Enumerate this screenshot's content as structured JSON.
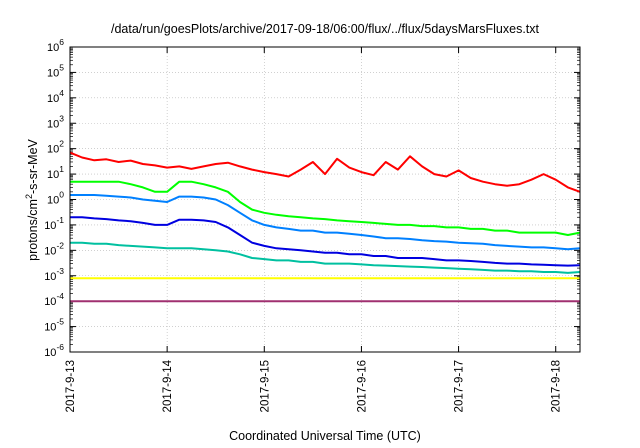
{
  "chart_data": {
    "type": "line",
    "title": "/data/run/goesPlots/archive/2017-09-18/06:00/flux/../flux/5daysMarsFluxes.txt",
    "xlabel": "Coordinated Universal Time (UTC)",
    "ylabel": {
      "before": "protons/cm",
      "sup": "2",
      "after": "-s-sr-MeV"
    },
    "y_scale": "log",
    "ylim": [
      1e-06,
      1000000
    ],
    "y_ticks": [
      {
        "base": "10",
        "exp": "6"
      },
      {
        "base": "10",
        "exp": "5"
      },
      {
        "base": "10",
        "exp": "4"
      },
      {
        "base": "10",
        "exp": "3"
      },
      {
        "base": "10",
        "exp": "2"
      },
      {
        "base": "10",
        "exp": "1"
      },
      {
        "base": "10",
        "exp": "0"
      },
      {
        "base": "10",
        "exp": "-1"
      },
      {
        "base": "10",
        "exp": "-2"
      },
      {
        "base": "10",
        "exp": "-3"
      },
      {
        "base": "10",
        "exp": "-4"
      },
      {
        "base": "10",
        "exp": "-5"
      },
      {
        "base": "10",
        "exp": "-6"
      }
    ],
    "x_ticks": [
      "2017-9-13",
      "2017-9-14",
      "2017-9-15",
      "2017-9-16",
      "2017-9-17",
      "2017-9-18"
    ],
    "xlim": [
      "2017-09-13 00:00",
      "2017-09-18 06:00"
    ],
    "grid": true,
    "legend": "none",
    "series": [
      {
        "color": "#ff0000",
        "x": [
          "2017-09-13 00:00",
          "2017-09-13 03:00",
          "2017-09-13 06:00",
          "2017-09-13 09:00",
          "2017-09-13 12:00",
          "2017-09-13 15:00",
          "2017-09-13 18:00",
          "2017-09-13 21:00",
          "2017-09-14 00:00",
          "2017-09-14 03:00",
          "2017-09-14 06:00",
          "2017-09-14 09:00",
          "2017-09-14 12:00",
          "2017-09-14 15:00",
          "2017-09-14 18:00",
          "2017-09-14 21:00",
          "2017-09-15 00:00",
          "2017-09-15 03:00",
          "2017-09-15 06:00",
          "2017-09-15 09:00",
          "2017-09-15 12:00",
          "2017-09-15 15:00",
          "2017-09-15 18:00",
          "2017-09-15 21:00",
          "2017-09-16 00:00",
          "2017-09-16 03:00",
          "2017-09-16 06:00",
          "2017-09-16 09:00",
          "2017-09-16 12:00",
          "2017-09-16 15:00",
          "2017-09-16 18:00",
          "2017-09-16 21:00",
          "2017-09-17 00:00",
          "2017-09-17 03:00",
          "2017-09-17 06:00",
          "2017-09-17 09:00",
          "2017-09-17 12:00",
          "2017-09-17 15:00",
          "2017-09-17 18:00",
          "2017-09-17 21:00",
          "2017-09-18 00:00",
          "2017-09-18 03:00",
          "2017-09-18 06:00"
        ],
        "values": [
          70,
          45,
          35,
          38,
          30,
          34,
          25,
          22,
          18,
          20,
          16,
          20,
          25,
          28,
          20,
          15,
          12,
          10,
          8,
          15,
          30,
          10,
          40,
          18,
          12,
          9,
          30,
          15,
          50,
          20,
          10,
          8,
          14,
          7,
          5,
          4,
          3.5,
          4,
          6,
          10,
          6,
          3,
          2
        ]
      },
      {
        "color": "#00ff00",
        "x": [
          "2017-09-13 00:00",
          "2017-09-13 03:00",
          "2017-09-13 06:00",
          "2017-09-13 09:00",
          "2017-09-13 12:00",
          "2017-09-13 15:00",
          "2017-09-13 18:00",
          "2017-09-13 21:00",
          "2017-09-14 00:00",
          "2017-09-14 03:00",
          "2017-09-14 06:00",
          "2017-09-14 09:00",
          "2017-09-14 12:00",
          "2017-09-14 15:00",
          "2017-09-14 18:00",
          "2017-09-14 21:00",
          "2017-09-15 00:00",
          "2017-09-15 03:00",
          "2017-09-15 06:00",
          "2017-09-15 09:00",
          "2017-09-15 12:00",
          "2017-09-15 15:00",
          "2017-09-15 18:00",
          "2017-09-15 21:00",
          "2017-09-16 00:00",
          "2017-09-16 03:00",
          "2017-09-16 06:00",
          "2017-09-16 09:00",
          "2017-09-16 12:00",
          "2017-09-16 15:00",
          "2017-09-16 18:00",
          "2017-09-16 21:00",
          "2017-09-17 00:00",
          "2017-09-17 03:00",
          "2017-09-17 06:00",
          "2017-09-17 09:00",
          "2017-09-17 12:00",
          "2017-09-17 15:00",
          "2017-09-17 18:00",
          "2017-09-17 21:00",
          "2017-09-18 00:00",
          "2017-09-18 03:00",
          "2017-09-18 06:00"
        ],
        "values": [
          5,
          5,
          5,
          5,
          5,
          4,
          3,
          2,
          2,
          5,
          5,
          4,
          3,
          2,
          0.8,
          0.4,
          0.3,
          0.25,
          0.22,
          0.2,
          0.18,
          0.17,
          0.15,
          0.14,
          0.13,
          0.12,
          0.11,
          0.1,
          0.1,
          0.09,
          0.09,
          0.08,
          0.08,
          0.07,
          0.07,
          0.06,
          0.06,
          0.05,
          0.05,
          0.05,
          0.05,
          0.04,
          0.05
        ]
      },
      {
        "color": "#0080ff",
        "x": [
          "2017-09-13 00:00",
          "2017-09-13 03:00",
          "2017-09-13 06:00",
          "2017-09-13 09:00",
          "2017-09-13 12:00",
          "2017-09-13 15:00",
          "2017-09-13 18:00",
          "2017-09-13 21:00",
          "2017-09-14 00:00",
          "2017-09-14 03:00",
          "2017-09-14 06:00",
          "2017-09-14 09:00",
          "2017-09-14 12:00",
          "2017-09-14 15:00",
          "2017-09-14 18:00",
          "2017-09-14 21:00",
          "2017-09-15 00:00",
          "2017-09-15 03:00",
          "2017-09-15 06:00",
          "2017-09-15 09:00",
          "2017-09-15 12:00",
          "2017-09-15 15:00",
          "2017-09-15 18:00",
          "2017-09-15 21:00",
          "2017-09-16 00:00",
          "2017-09-16 03:00",
          "2017-09-16 06:00",
          "2017-09-16 09:00",
          "2017-09-16 12:00",
          "2017-09-16 15:00",
          "2017-09-16 18:00",
          "2017-09-16 21:00",
          "2017-09-17 00:00",
          "2017-09-17 03:00",
          "2017-09-17 06:00",
          "2017-09-17 09:00",
          "2017-09-17 12:00",
          "2017-09-17 15:00",
          "2017-09-17 18:00",
          "2017-09-17 21:00",
          "2017-09-18 00:00",
          "2017-09-18 03:00",
          "2017-09-18 06:00"
        ],
        "values": [
          1.5,
          1.5,
          1.5,
          1.4,
          1.3,
          1.2,
          1.0,
          0.9,
          0.8,
          1.3,
          1.3,
          1.2,
          1.0,
          0.6,
          0.3,
          0.15,
          0.1,
          0.08,
          0.07,
          0.06,
          0.06,
          0.05,
          0.05,
          0.045,
          0.04,
          0.035,
          0.03,
          0.03,
          0.028,
          0.025,
          0.023,
          0.022,
          0.02,
          0.019,
          0.018,
          0.016,
          0.015,
          0.014,
          0.013,
          0.013,
          0.012,
          0.011,
          0.012
        ]
      },
      {
        "color": "#0000e0",
        "x": [
          "2017-09-13 00:00",
          "2017-09-13 03:00",
          "2017-09-13 06:00",
          "2017-09-13 09:00",
          "2017-09-13 12:00",
          "2017-09-13 15:00",
          "2017-09-13 18:00",
          "2017-09-13 21:00",
          "2017-09-14 00:00",
          "2017-09-14 03:00",
          "2017-09-14 06:00",
          "2017-09-14 09:00",
          "2017-09-14 12:00",
          "2017-09-14 15:00",
          "2017-09-14 18:00",
          "2017-09-14 21:00",
          "2017-09-15 00:00",
          "2017-09-15 03:00",
          "2017-09-15 06:00",
          "2017-09-15 09:00",
          "2017-09-15 12:00",
          "2017-09-15 15:00",
          "2017-09-15 18:00",
          "2017-09-15 21:00",
          "2017-09-16 00:00",
          "2017-09-16 03:00",
          "2017-09-16 06:00",
          "2017-09-16 09:00",
          "2017-09-16 12:00",
          "2017-09-16 15:00",
          "2017-09-16 18:00",
          "2017-09-16 21:00",
          "2017-09-17 00:00",
          "2017-09-17 03:00",
          "2017-09-17 06:00",
          "2017-09-17 09:00",
          "2017-09-17 12:00",
          "2017-09-17 15:00",
          "2017-09-17 18:00",
          "2017-09-17 21:00",
          "2017-09-18 00:00",
          "2017-09-18 03:00",
          "2017-09-18 06:00"
        ],
        "values": [
          0.2,
          0.2,
          0.18,
          0.17,
          0.15,
          0.14,
          0.12,
          0.1,
          0.1,
          0.16,
          0.16,
          0.15,
          0.13,
          0.08,
          0.04,
          0.02,
          0.015,
          0.012,
          0.011,
          0.01,
          0.009,
          0.008,
          0.008,
          0.007,
          0.007,
          0.006,
          0.006,
          0.005,
          0.005,
          0.005,
          0.0045,
          0.004,
          0.004,
          0.0038,
          0.0035,
          0.0032,
          0.003,
          0.003,
          0.0028,
          0.0027,
          0.0026,
          0.0025,
          0.0026
        ]
      },
      {
        "color": "#00c0a0",
        "x": [
          "2017-09-13 00:00",
          "2017-09-13 03:00",
          "2017-09-13 06:00",
          "2017-09-13 09:00",
          "2017-09-13 12:00",
          "2017-09-13 15:00",
          "2017-09-13 18:00",
          "2017-09-13 21:00",
          "2017-09-14 00:00",
          "2017-09-14 03:00",
          "2017-09-14 06:00",
          "2017-09-14 09:00",
          "2017-09-14 12:00",
          "2017-09-14 15:00",
          "2017-09-14 18:00",
          "2017-09-14 21:00",
          "2017-09-15 00:00",
          "2017-09-15 03:00",
          "2017-09-15 06:00",
          "2017-09-15 09:00",
          "2017-09-15 12:00",
          "2017-09-15 15:00",
          "2017-09-15 18:00",
          "2017-09-15 21:00",
          "2017-09-16 00:00",
          "2017-09-16 03:00",
          "2017-09-16 06:00",
          "2017-09-16 09:00",
          "2017-09-16 12:00",
          "2017-09-16 15:00",
          "2017-09-16 18:00",
          "2017-09-16 21:00",
          "2017-09-17 00:00",
          "2017-09-17 03:00",
          "2017-09-17 06:00",
          "2017-09-17 09:00",
          "2017-09-17 12:00",
          "2017-09-17 15:00",
          "2017-09-17 18:00",
          "2017-09-17 21:00",
          "2017-09-18 00:00",
          "2017-09-18 03:00",
          "2017-09-18 06:00"
        ],
        "values": [
          0.02,
          0.02,
          0.018,
          0.018,
          0.016,
          0.015,
          0.014,
          0.013,
          0.012,
          0.012,
          0.012,
          0.011,
          0.01,
          0.009,
          0.007,
          0.005,
          0.0045,
          0.004,
          0.004,
          0.0035,
          0.0035,
          0.003,
          0.003,
          0.003,
          0.0028,
          0.0026,
          0.0025,
          0.0024,
          0.0023,
          0.0022,
          0.0021,
          0.002,
          0.0019,
          0.0018,
          0.0017,
          0.0016,
          0.0016,
          0.0015,
          0.0015,
          0.0014,
          0.0014,
          0.0013,
          0.0014
        ]
      },
      {
        "color": "#ffff00",
        "x": [
          "2017-09-13 00:00",
          "2017-09-13 03:00",
          "2017-09-13 06:00",
          "2017-09-13 09:00",
          "2017-09-13 12:00",
          "2017-09-13 15:00",
          "2017-09-13 18:00",
          "2017-09-13 21:00",
          "2017-09-14 00:00",
          "2017-09-14 03:00",
          "2017-09-14 06:00",
          "2017-09-14 09:00",
          "2017-09-14 12:00",
          "2017-09-14 15:00",
          "2017-09-14 18:00",
          "2017-09-14 21:00",
          "2017-09-15 00:00",
          "2017-09-15 03:00",
          "2017-09-15 06:00",
          "2017-09-15 09:00",
          "2017-09-15 12:00",
          "2017-09-15 15:00",
          "2017-09-15 18:00",
          "2017-09-15 21:00",
          "2017-09-16 00:00",
          "2017-09-16 03:00",
          "2017-09-16 06:00",
          "2017-09-16 09:00",
          "2017-09-16 12:00",
          "2017-09-16 15:00",
          "2017-09-16 18:00",
          "2017-09-16 21:00",
          "2017-09-17 00:00",
          "2017-09-17 03:00",
          "2017-09-17 06:00",
          "2017-09-17 09:00",
          "2017-09-17 12:00",
          "2017-09-17 15:00",
          "2017-09-17 18:00",
          "2017-09-17 21:00",
          "2017-09-18 00:00",
          "2017-09-18 03:00",
          "2017-09-18 06:00"
        ],
        "values": [
          0.0008,
          0.0008,
          0.0008,
          0.0008,
          0.0008,
          0.0008,
          0.0008,
          0.0008,
          0.0008,
          0.0008,
          0.0008,
          0.0008,
          0.0008,
          0.0008,
          0.0008,
          0.0008,
          0.0008,
          0.0008,
          0.0008,
          0.0008,
          0.0008,
          0.0008,
          0.0008,
          0.0008,
          0.0008,
          0.0008,
          0.0008,
          0.0008,
          0.0008,
          0.0008,
          0.0008,
          0.0008,
          0.0008,
          0.0008,
          0.0008,
          0.0008,
          0.0008,
          0.0008,
          0.0008,
          0.0008,
          0.0008,
          0.0008,
          0.0008
        ]
      },
      {
        "color": "#a03070",
        "x": [
          "2017-09-13 00:00",
          "2017-09-13 03:00",
          "2017-09-13 06:00",
          "2017-09-13 09:00",
          "2017-09-13 12:00",
          "2017-09-13 15:00",
          "2017-09-13 18:00",
          "2017-09-13 21:00",
          "2017-09-14 00:00",
          "2017-09-14 03:00",
          "2017-09-14 06:00",
          "2017-09-14 09:00",
          "2017-09-14 12:00",
          "2017-09-14 15:00",
          "2017-09-14 18:00",
          "2017-09-14 21:00",
          "2017-09-15 00:00",
          "2017-09-15 03:00",
          "2017-09-15 06:00",
          "2017-09-15 09:00",
          "2017-09-15 12:00",
          "2017-09-15 15:00",
          "2017-09-15 18:00",
          "2017-09-15 21:00",
          "2017-09-16 00:00",
          "2017-09-16 03:00",
          "2017-09-16 06:00",
          "2017-09-16 09:00",
          "2017-09-16 12:00",
          "2017-09-16 15:00",
          "2017-09-16 18:00",
          "2017-09-16 21:00",
          "2017-09-17 00:00",
          "2017-09-17 03:00",
          "2017-09-17 06:00",
          "2017-09-17 09:00",
          "2017-09-17 12:00",
          "2017-09-17 15:00",
          "2017-09-17 18:00",
          "2017-09-17 21:00",
          "2017-09-18 00:00",
          "2017-09-18 03:00",
          "2017-09-18 06:00"
        ],
        "values": [
          0.0001,
          0.0001,
          0.0001,
          0.0001,
          0.0001,
          0.0001,
          0.0001,
          0.0001,
          0.0001,
          0.0001,
          0.0001,
          0.0001,
          0.0001,
          0.0001,
          0.0001,
          0.0001,
          0.0001,
          0.0001,
          0.0001,
          0.0001,
          0.0001,
          0.0001,
          0.0001,
          0.0001,
          0.0001,
          0.0001,
          0.0001,
          0.0001,
          0.0001,
          0.0001,
          0.0001,
          0.0001,
          0.0001,
          0.0001,
          0.0001,
          0.0001,
          0.0001,
          0.0001,
          0.0001,
          0.0001,
          0.0001,
          0.0001,
          0.0001
        ]
      }
    ]
  }
}
